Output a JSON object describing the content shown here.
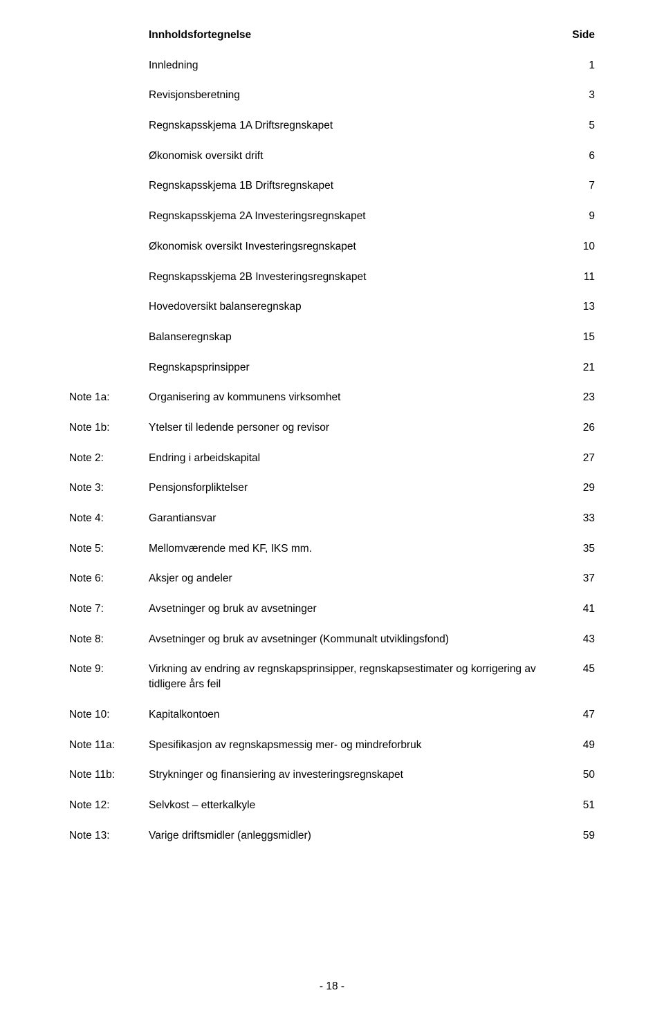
{
  "header": {
    "left": "Innholdsfortegnelse",
    "right": "Side"
  },
  "entries": [
    {
      "prefix": "",
      "text": "Innledning",
      "page": "1"
    },
    {
      "prefix": "",
      "text": "Revisjonsberetning",
      "page": "3"
    },
    {
      "prefix": "",
      "text": "Regnskapsskjema 1A Driftsregnskapet",
      "page": "5"
    },
    {
      "prefix": "",
      "text": "Økonomisk oversikt drift",
      "page": "6"
    },
    {
      "prefix": "",
      "text": "Regnskapsskjema 1B Driftsregnskapet",
      "page": "7"
    },
    {
      "prefix": "",
      "text": "Regnskapsskjema 2A Investeringsregnskapet",
      "page": "9"
    },
    {
      "prefix": "",
      "text": "Økonomisk oversikt Investeringsregnskapet",
      "page": "10"
    },
    {
      "prefix": "",
      "text": "Regnskapsskjema 2B Investeringsregnskapet",
      "page": "11"
    },
    {
      "prefix": "",
      "text": "Hovedoversikt balanseregnskap",
      "page": "13"
    },
    {
      "prefix": "",
      "text": "Balanseregnskap",
      "page": "15"
    },
    {
      "prefix": "",
      "text": "Regnskapsprinsipper",
      "page": "21"
    },
    {
      "prefix": "Note 1a:",
      "text": "Organisering av kommunens virksomhet",
      "page": "23"
    },
    {
      "prefix": "Note 1b:",
      "text": "Ytelser til ledende personer og revisor",
      "page": "26"
    },
    {
      "prefix": "Note 2:",
      "text": "Endring i arbeidskapital",
      "page": "27"
    },
    {
      "prefix": "Note 3:",
      "text": "Pensjonsforpliktelser",
      "page": "29"
    },
    {
      "prefix": "Note 4:",
      "text": "Garantiansvar",
      "page": "33"
    },
    {
      "prefix": "Note 5:",
      "text": "Mellomværende med KF, IKS mm.",
      "page": "35"
    },
    {
      "prefix": "Note 6:",
      "text": "Aksjer og andeler",
      "page": "37"
    },
    {
      "prefix": "Note 7:",
      "text": "Avsetninger og bruk av avsetninger",
      "page": "41"
    },
    {
      "prefix": "Note 8:",
      "text": "Avsetninger og bruk av avsetninger (Kommunalt utviklingsfond)",
      "page": "43"
    },
    {
      "prefix": "Note 9:",
      "text": "Virkning av endring av regnskapsprinsipper, regnskapsestimater og korrigering av tidligere års feil",
      "page": "45"
    },
    {
      "prefix": "Note 10:",
      "text": "Kapitalkontoen",
      "page": "47"
    },
    {
      "prefix": "Note 11a:",
      "text": "Spesifikasjon av regnskapsmessig mer- og mindreforbruk",
      "page": "49"
    },
    {
      "prefix": "Note 11b:",
      "text": "Strykninger og finansiering av investeringsregnskapet",
      "page": "50"
    },
    {
      "prefix": "Note 12:",
      "text": "Selvkost – etterkalkyle",
      "page": "51"
    },
    {
      "prefix": "Note 13:",
      "text": "Varige driftsmidler (anleggsmidler)",
      "page": "59"
    }
  ],
  "footer": {
    "page_number": "- 18 -"
  }
}
